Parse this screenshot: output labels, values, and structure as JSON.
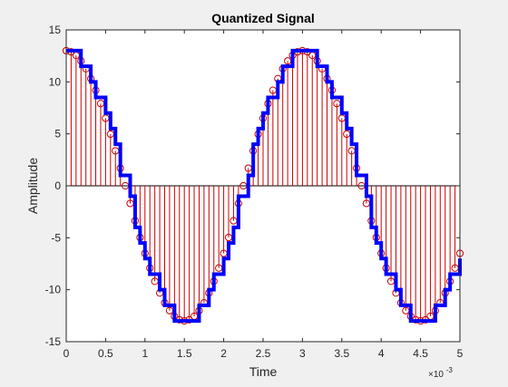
{
  "chart_data": {
    "type": "line",
    "title": "Quantized Signal",
    "xlabel": "Time",
    "ylabel": "Amplitude",
    "xlim": [
      0,
      0.005
    ],
    "ylim": [
      -15,
      15
    ],
    "x_exponent_label": "×10",
    "x_exponent_power": "-3",
    "x_ticks": [
      0,
      0.0005,
      0.001,
      0.0015,
      0.002,
      0.0025,
      0.003,
      0.0035,
      0.004,
      0.0045,
      0.005
    ],
    "x_tick_labels": [
      "0",
      "0.5",
      "1",
      "1.5",
      "2",
      "2.5",
      "3",
      "3.5",
      "4",
      "4.5",
      "5"
    ],
    "y_ticks": [
      -15,
      -10,
      -5,
      0,
      5,
      10,
      15
    ],
    "y_tick_labels": [
      "-15",
      "-10",
      "-5",
      "0",
      "5",
      "10",
      "15"
    ],
    "grid": false,
    "signal": {
      "form": "sine",
      "amplitude": 13,
      "frequency_hz": 333.33,
      "phase_deg": 90,
      "sample_interval": 6.25e-05,
      "t_start": 0,
      "t_end": 0.005
    },
    "quantization_levels": [
      -13,
      -11.5,
      -10,
      -8.5,
      -7,
      -5.5,
      -4,
      -2.5,
      -1,
      1,
      2.5,
      4,
      5.5,
      7,
      8.5,
      10,
      11.5,
      13
    ],
    "series": [
      {
        "style": "stem",
        "color": "#cc0000",
        "marker": "circle"
      },
      {
        "style": "stairs",
        "color": "#0000ff"
      }
    ],
    "colors": {
      "axes_background": "#ffffff",
      "figure_background": "#f0f0f0",
      "stem": "#cc0000",
      "stairs": "#0000ff",
      "axis": "#262626"
    }
  }
}
